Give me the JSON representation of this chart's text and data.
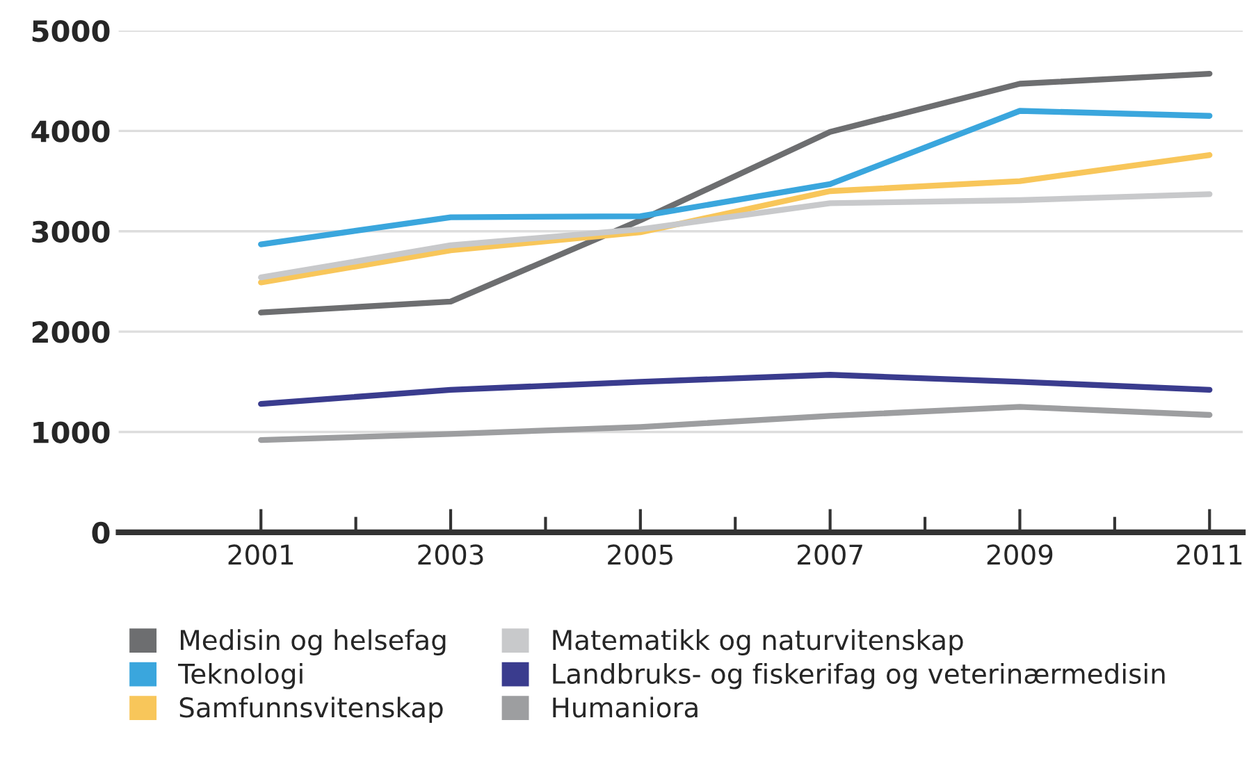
{
  "chart_data": {
    "type": "line",
    "x": [
      2001,
      2003,
      2005,
      2007,
      2009,
      2011
    ],
    "series": [
      {
        "name": "Medisin og helsefag",
        "color": "#6d6e70",
        "values": [
          2190,
          2300,
          3110,
          3990,
          4470,
          4570
        ]
      },
      {
        "name": "Teknologi",
        "color": "#3aa6dd",
        "values": [
          2870,
          3140,
          3150,
          3470,
          4200,
          4150
        ]
      },
      {
        "name": "Samfunnsvitenskap",
        "color": "#f8c65a",
        "values": [
          2490,
          2810,
          2990,
          3400,
          3500,
          3760
        ]
      },
      {
        "name": "Matematikk og naturvitenskap",
        "color": "#c8c9cb",
        "values": [
          2540,
          2860,
          3020,
          3280,
          3310,
          3370
        ]
      },
      {
        "name": "Landbruks- og fiskerifag og veterinærmedisin",
        "color": "#3a3c8e",
        "values": [
          1280,
          1420,
          1500,
          1570,
          1500,
          1420
        ]
      },
      {
        "name": "Humaniora",
        "color": "#9d9ea0",
        "values": [
          920,
          980,
          1050,
          1160,
          1250,
          1170
        ]
      }
    ],
    "xlim": [
      1999.5,
      2011.35
    ],
    "xticks": [
      2001,
      {
        "value": 2002,
        "label": null
      },
      2003,
      {
        "value": 2004,
        "label": null
      },
      2005,
      {
        "value": 2006,
        "label": null
      },
      2007,
      {
        "value": 2008,
        "label": null
      },
      2009,
      {
        "value": 2010,
        "label": null
      },
      2011
    ],
    "ylim": [
      0,
      5000
    ],
    "yticks": [
      0,
      1000,
      2000,
      3000,
      4000,
      5000
    ],
    "grid": "y",
    "legend": "bottom",
    "marker": "none",
    "line_style": "solid"
  }
}
